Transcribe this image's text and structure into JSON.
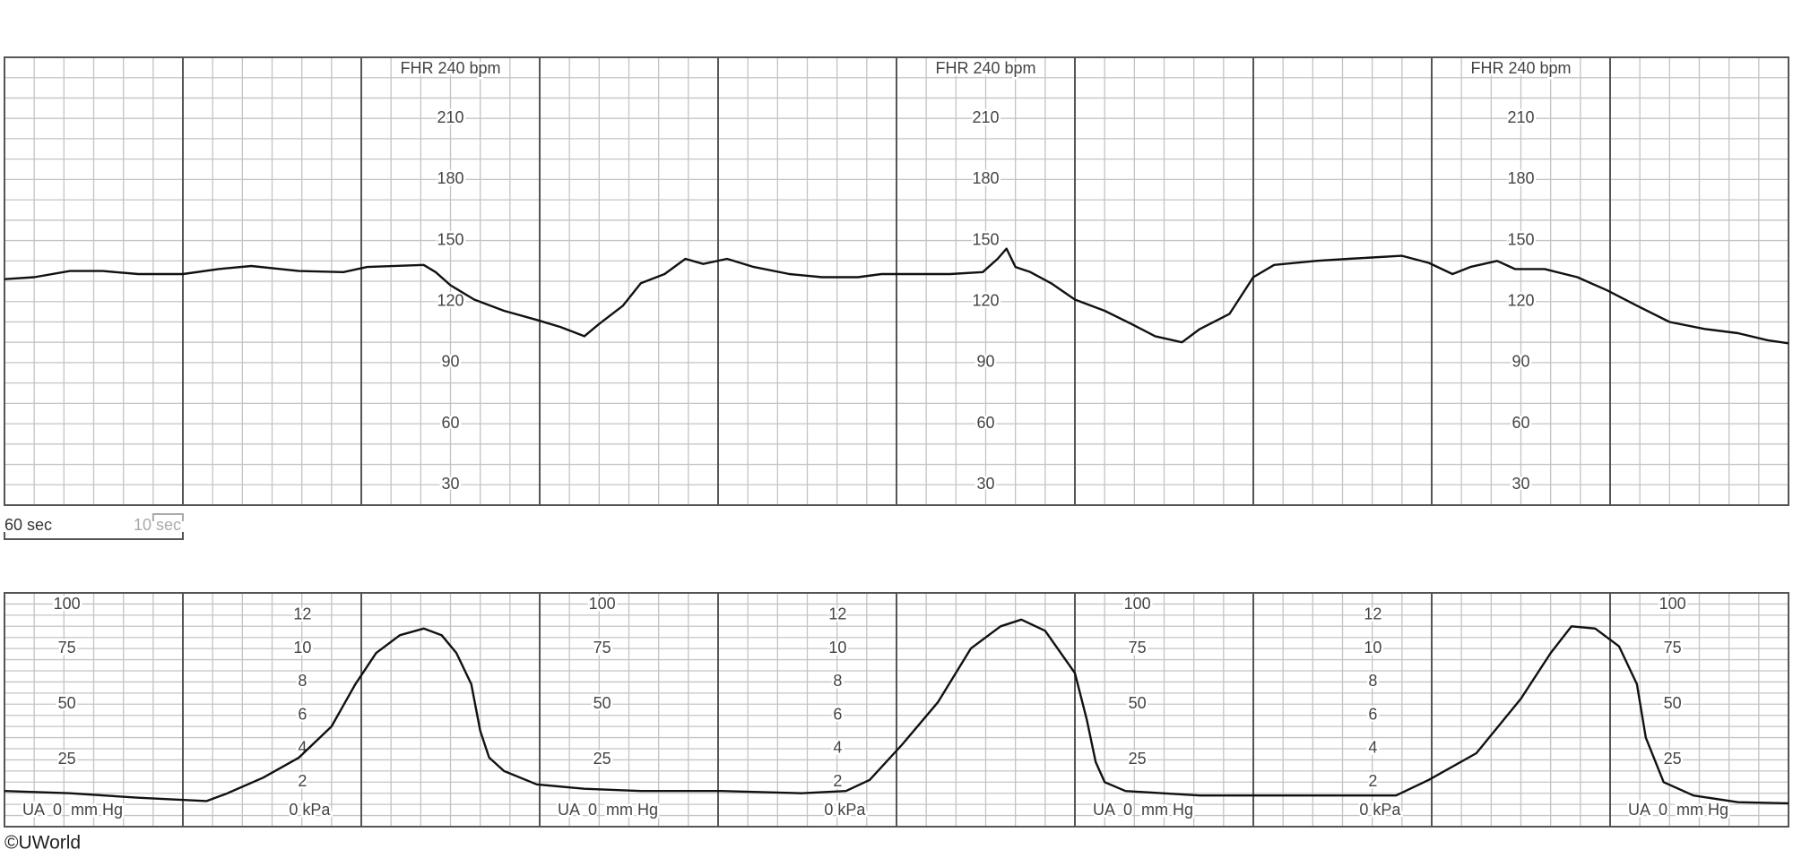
{
  "chart_data": [
    {
      "type": "line",
      "scale_title": "FHR 240 bpm",
      "x": [
        0,
        10,
        22,
        33,
        45,
        60,
        72,
        83,
        99,
        114,
        122,
        141,
        145,
        150,
        158,
        168,
        179,
        187,
        195,
        200,
        208,
        214,
        222,
        229,
        235,
        243,
        252,
        264,
        275,
        287,
        295,
        306,
        318,
        329,
        334,
        337,
        340,
        345,
        352,
        360,
        370,
        379,
        387,
        396,
        402,
        412,
        420,
        427,
        441,
        452,
        470,
        479,
        487,
        493,
        502,
        508,
        518,
        529,
        539,
        549,
        560,
        572,
        583,
        593,
        600
      ],
      "series": [
        {
          "color": "#111111",
          "values": [
            131,
            132,
            135,
            135,
            133.5,
            133.5,
            136,
            137.5,
            135,
            134.5,
            137,
            138,
            134.5,
            128,
            121,
            115.5,
            111,
            107.5,
            103,
            109,
            118,
            129,
            133.5,
            141,
            138.5,
            141,
            137,
            133.5,
            132,
            132,
            133.5,
            133.5,
            133.5,
            134.5,
            141,
            146,
            137,
            134.5,
            129,
            121,
            115.5,
            109,
            103,
            100,
            106.5,
            114,
            132,
            138,
            140,
            141,
            142.5,
            139,
            133.5,
            137,
            140,
            136,
            136,
            132,
            125.5,
            118,
            110,
            106.5,
            104.5,
            101,
            99.5
          ]
        }
      ],
      "xlim": [
        0,
        600
      ],
      "xticks": [
        0,
        60,
        120,
        180,
        240,
        300,
        360,
        420,
        480,
        540,
        600
      ],
      "minor_xstep": 10,
      "ylim": [
        20,
        240
      ],
      "yticks": [
        30,
        60,
        90,
        120,
        150,
        180,
        210
      ],
      "minor_ystep": 10,
      "grid": true
    },
    {
      "type": "line",
      "baseline_label": "UA  0  mm Hg",
      "y2_baseline_label": "0 kPa",
      "x": [
        0,
        22,
        45,
        68,
        75,
        87,
        99,
        110,
        118,
        125,
        133,
        141,
        147,
        152,
        157,
        160,
        163,
        168,
        179,
        195,
        214,
        241,
        268,
        283,
        291,
        302,
        314,
        325,
        335,
        342,
        350,
        360,
        364,
        367,
        370,
        377,
        402,
        441,
        468,
        479,
        495,
        510,
        520,
        527,
        535,
        543,
        549,
        552,
        558,
        568,
        583,
        600
      ],
      "series": [
        {
          "color": "#111111",
          "values": [
            11,
            10,
            8,
            6.5,
            10,
            17,
            26,
            40,
            59,
            73,
            81,
            84,
            81,
            73,
            59,
            38,
            26,
            20,
            14,
            12,
            11,
            11,
            10,
            11,
            16,
            32,
            51,
            75,
            85,
            88,
            83,
            64,
            43,
            24,
            15,
            11,
            9,
            9,
            9,
            16,
            28,
            52.5,
            73,
            85,
            84,
            76,
            59,
            35,
            15,
            9,
            6,
            5.5
          ]
        }
      ],
      "xlim": [
        0,
        600
      ],
      "xticks": [
        0,
        60,
        120,
        180,
        240,
        300,
        360,
        420,
        480,
        540,
        600
      ],
      "minor_xstep": 10,
      "ylim": [
        -5,
        100
      ],
      "yticks": [
        25,
        50,
        75,
        100
      ],
      "minor_ystep": 5,
      "y2lim": [
        -0.667,
        13.333
      ],
      "y2ticks": [
        2,
        4,
        6,
        8,
        10,
        12
      ],
      "grid": true
    }
  ],
  "time_scale": {
    "major_label": "60 sec",
    "minor_label": "10 sec"
  },
  "copyright": "©UWorld"
}
